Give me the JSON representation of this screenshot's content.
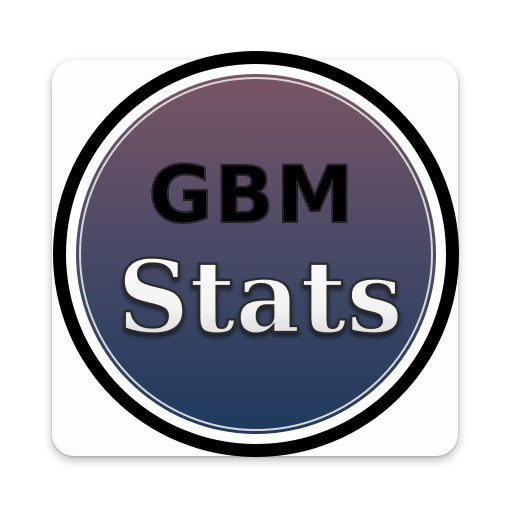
{
  "icon": {
    "line1": "GBM",
    "line2": "Stats",
    "colors": {
      "gradient_top": "#7a5565",
      "gradient_mid": "#4a4a66",
      "gradient_bottom": "#1e3a5e",
      "ring": "#000000",
      "inner_ring": "#ffffff",
      "line1_fill": "#000000",
      "line2_fill": "#ffffff"
    }
  }
}
